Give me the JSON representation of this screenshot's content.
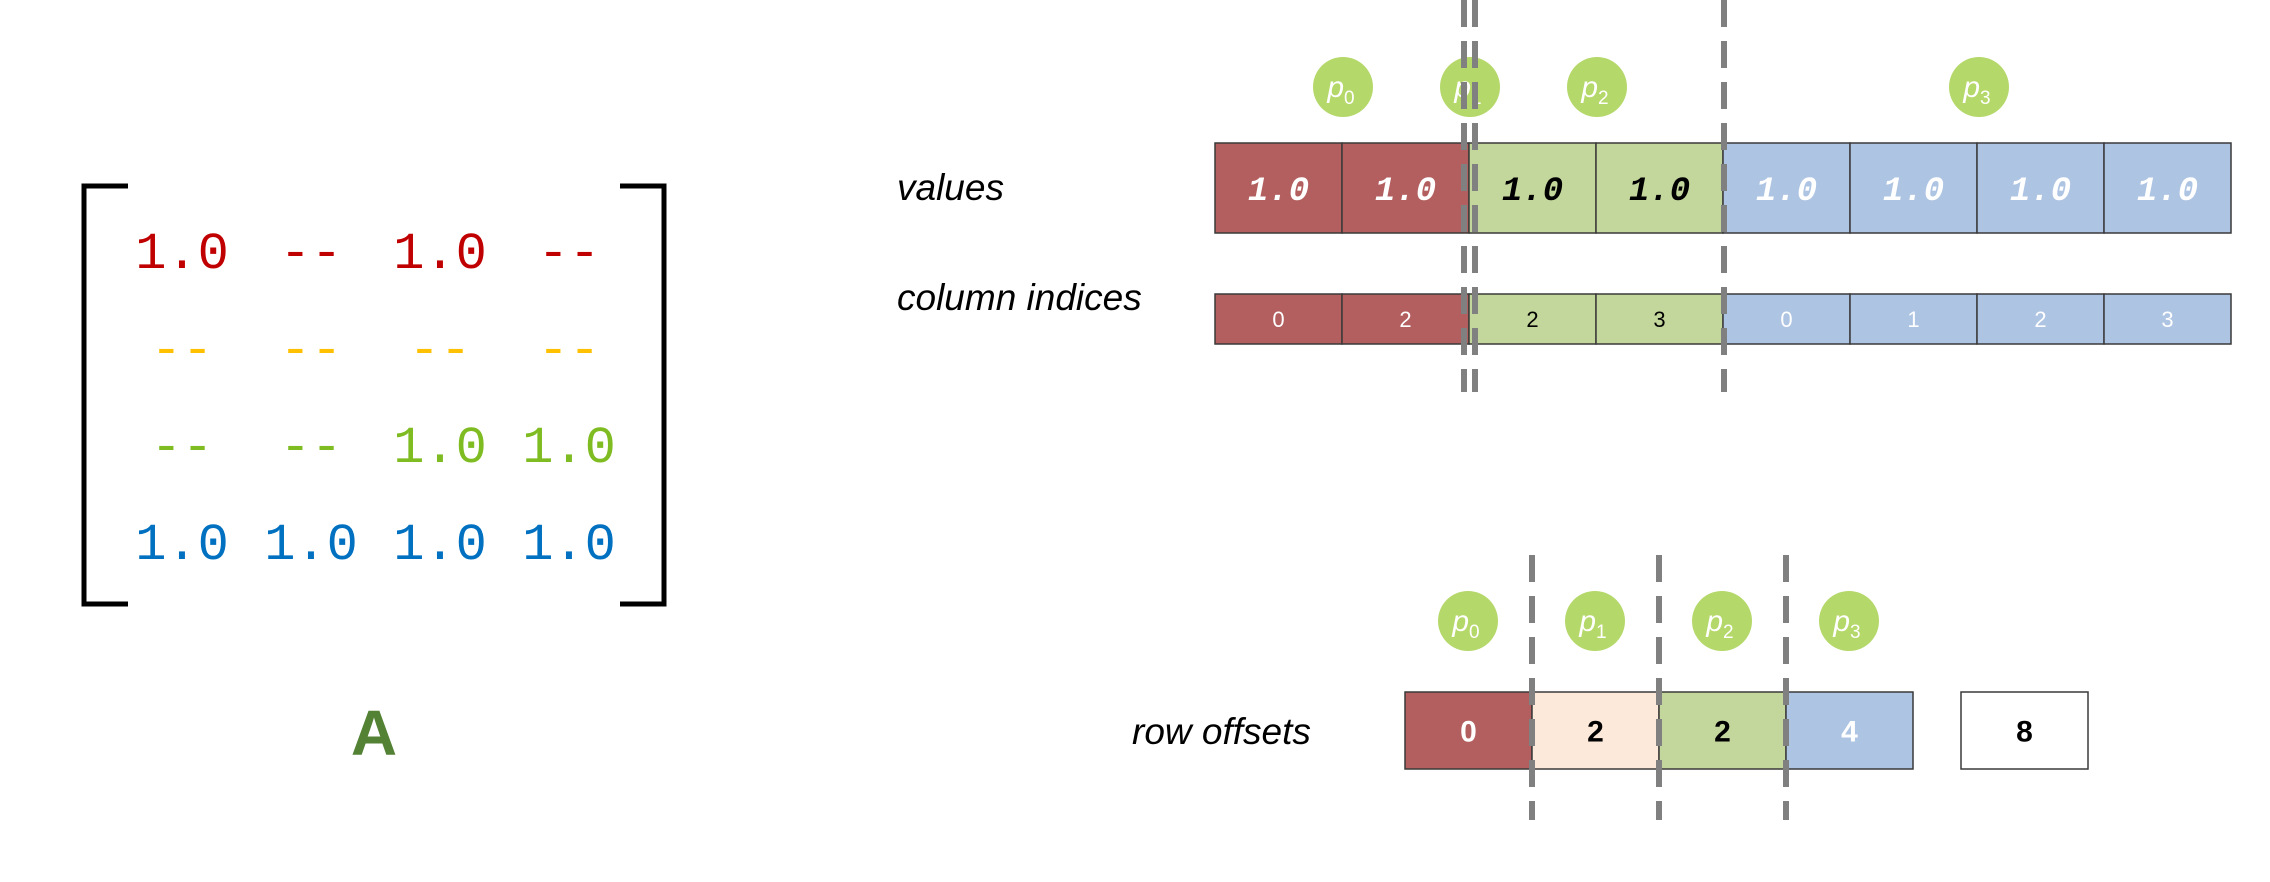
{
  "matrix": {
    "name": "A",
    "name_color": "#548235",
    "rows": [
      {
        "color": "#c00000",
        "cells": [
          "1.0",
          "--",
          "1.0",
          "--"
        ]
      },
      {
        "color": "#ffc000",
        "cells": [
          "--",
          "--",
          "--",
          "--"
        ]
      },
      {
        "color": "#7fbc22",
        "cells": [
          "--",
          "--",
          "1.0",
          "1.0"
        ]
      },
      {
        "color": "#0070c0",
        "cells": [
          "1.0",
          "1.0",
          "1.0",
          "1.0"
        ]
      }
    ]
  },
  "labels": {
    "values": "values",
    "column_indices": "column indices",
    "row_offsets": "row offsets"
  },
  "partitions": [
    {
      "base": "p",
      "sub": "0"
    },
    {
      "base": "p",
      "sub": "1"
    },
    {
      "base": "p",
      "sub": "2"
    },
    {
      "base": "p",
      "sub": "3"
    }
  ],
  "values": [
    {
      "text": "1.0",
      "group": 0
    },
    {
      "text": "1.0",
      "group": 0
    },
    {
      "text": "1.0",
      "group": 2
    },
    {
      "text": "1.0",
      "group": 2
    },
    {
      "text": "1.0",
      "group": 3
    },
    {
      "text": "1.0",
      "group": 3
    },
    {
      "text": "1.0",
      "group": 3
    },
    {
      "text": "1.0",
      "group": 3
    }
  ],
  "column_indices": [
    {
      "text": "0",
      "group": 0
    },
    {
      "text": "2",
      "group": 0
    },
    {
      "text": "2",
      "group": 2
    },
    {
      "text": "3",
      "group": 2
    },
    {
      "text": "0",
      "group": 3
    },
    {
      "text": "1",
      "group": 3
    },
    {
      "text": "2",
      "group": 3
    },
    {
      "text": "3",
      "group": 3
    }
  ],
  "row_offsets": [
    {
      "text": "0",
      "group": 0
    },
    {
      "text": "2",
      "group": 1
    },
    {
      "text": "2",
      "group": 2
    },
    {
      "text": "4",
      "group": 3
    },
    {
      "text": "8",
      "group": "end"
    }
  ],
  "colors": {
    "group_fill": [
      "#b35f5f",
      "#fde9d9",
      "#c3d69b",
      "#aec4e3"
    ],
    "group_text": [
      "#ffffff",
      "#000000",
      "#000000",
      "#ffffff"
    ],
    "end_fill": "#ffffff",
    "badge_fill": "#b5d86a",
    "badge_text": "#ffffff",
    "divider": "#808080"
  }
}
